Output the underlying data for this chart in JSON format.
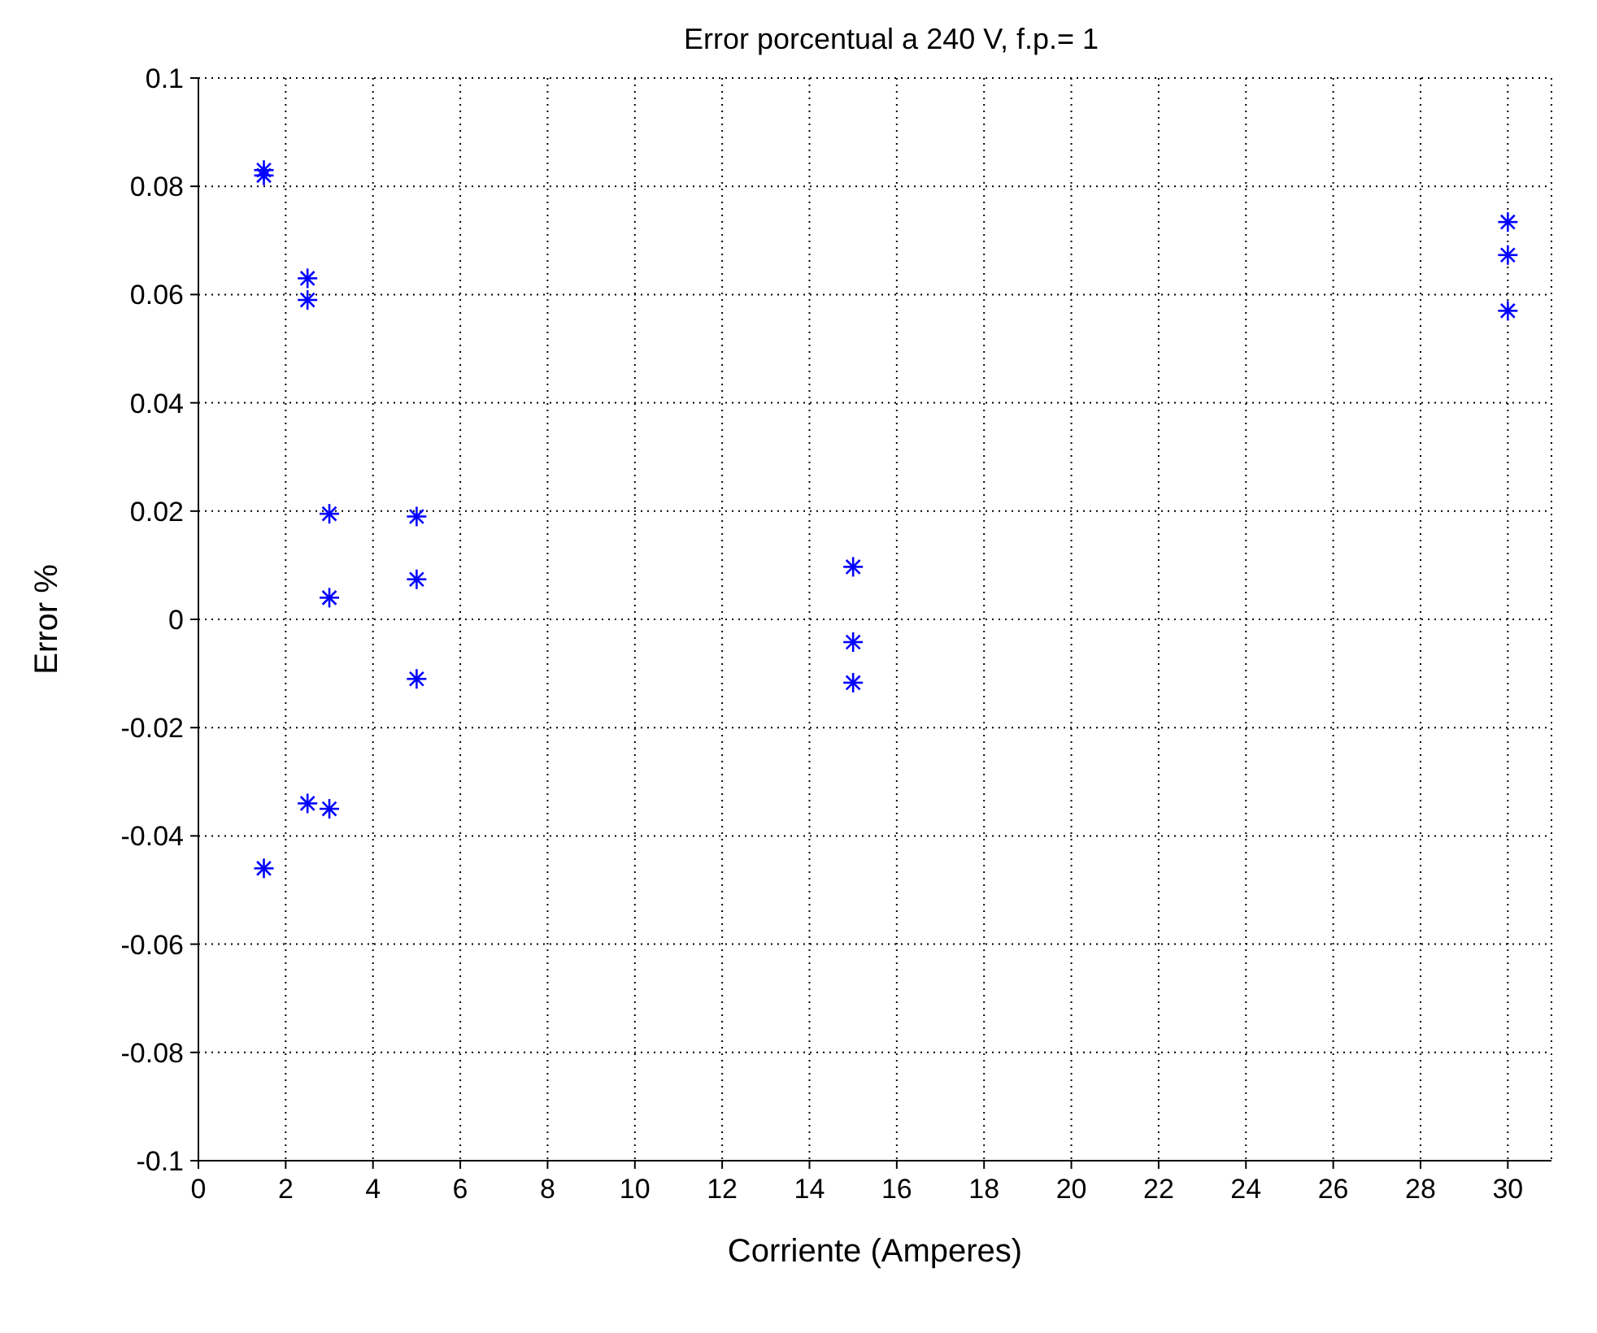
{
  "chart_data": {
    "type": "scatter",
    "title": "Error porcentual a 240 V, f.p.= 1",
    "xlabel": "Corriente (Amperes)",
    "ylabel": "Error %",
    "x": [
      1.5,
      1.5,
      1.5,
      2.5,
      2.5,
      2.5,
      3,
      3,
      3,
      5,
      5,
      5,
      15,
      15,
      15,
      30,
      30,
      30
    ],
    "series": [
      {
        "color": "#0000ff",
        "values": [
          0.083,
          0.082,
          -0.046,
          0.063,
          0.059,
          -0.034,
          0.0195,
          0.004,
          -0.035,
          0.019,
          0.0074,
          -0.011,
          0.0097,
          -0.0042,
          -0.0117,
          0.0734,
          0.0673,
          0.057
        ]
      }
    ],
    "xlim": [
      0,
      31
    ],
    "xticks": [
      0,
      2,
      4,
      6,
      8,
      10,
      12,
      14,
      16,
      18,
      20,
      22,
      24,
      26,
      28,
      30
    ],
    "ylim": [
      -0.1,
      0.1
    ],
    "yticks": [
      -0.1,
      -0.08,
      -0.06,
      -0.04,
      -0.02,
      0,
      0.02,
      0.04,
      0.06,
      0.08,
      0.1
    ],
    "grid": true,
    "marker": "cross"
  }
}
